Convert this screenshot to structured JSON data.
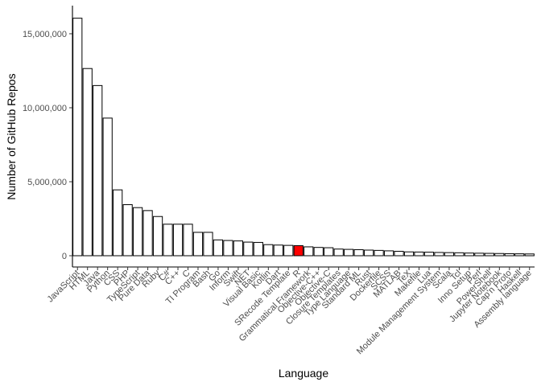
{
  "chart_data": {
    "type": "bar",
    "title": "",
    "xlabel": "Language",
    "ylabel": "Number of GitHub Repos",
    "ylim": [
      0,
      16900000
    ],
    "yticks": [
      0,
      5000000,
      10000000,
      15000000
    ],
    "ytick_labels": [
      "0",
      "5,000,000",
      "10,000,000",
      "15,000,000"
    ],
    "grid": false,
    "legend": "none",
    "colors": {
      "bar_fill": "#ffffff",
      "bar_stroke": "#000000",
      "highlight_fill": "#ff0000",
      "text": "#4d4d4d",
      "axis": "#000000"
    },
    "highlight": "R",
    "categories": [
      "JavaScript",
      "HTML",
      "Java",
      "Python",
      "CSS",
      "PHP",
      "TypeScript",
      "Pure Data",
      "Ruby",
      "C#",
      "C++",
      "C",
      "TI Program",
      "Bash",
      "Go",
      "Inform",
      "Swift",
      ".NET",
      "Visual Basic",
      "Kotlin",
      "Dart",
      "SRecode Template",
      "R",
      "Grammatical Framework",
      "Objective-C++",
      "Objective-C",
      "Closure Templates",
      "Type Language",
      "Standard ML",
      "Rust",
      "Dockerfile",
      "SCSS",
      "MATLAB",
      "TeX",
      "Makefile",
      "Lua",
      "Module Management System",
      "Scala",
      "Tcl",
      "Inno Setup",
      "Perl",
      "PowerShell",
      "Jupyter Notebook",
      "Cap'n Proto",
      "Haskell",
      "Assembly language"
    ],
    "values": [
      16050000,
      12650000,
      11500000,
      9300000,
      4450000,
      3450000,
      3250000,
      3050000,
      2650000,
      2130000,
      2130000,
      2130000,
      1580000,
      1580000,
      1070000,
      1030000,
      1000000,
      920000,
      900000,
      750000,
      720000,
      700000,
      680000,
      600000,
      560000,
      540000,
      450000,
      430000,
      410000,
      380000,
      360000,
      330000,
      300000,
      260000,
      250000,
      240000,
      220000,
      210000,
      200000,
      180000,
      170000,
      160000,
      150000,
      140000,
      130000,
      120000
    ]
  }
}
